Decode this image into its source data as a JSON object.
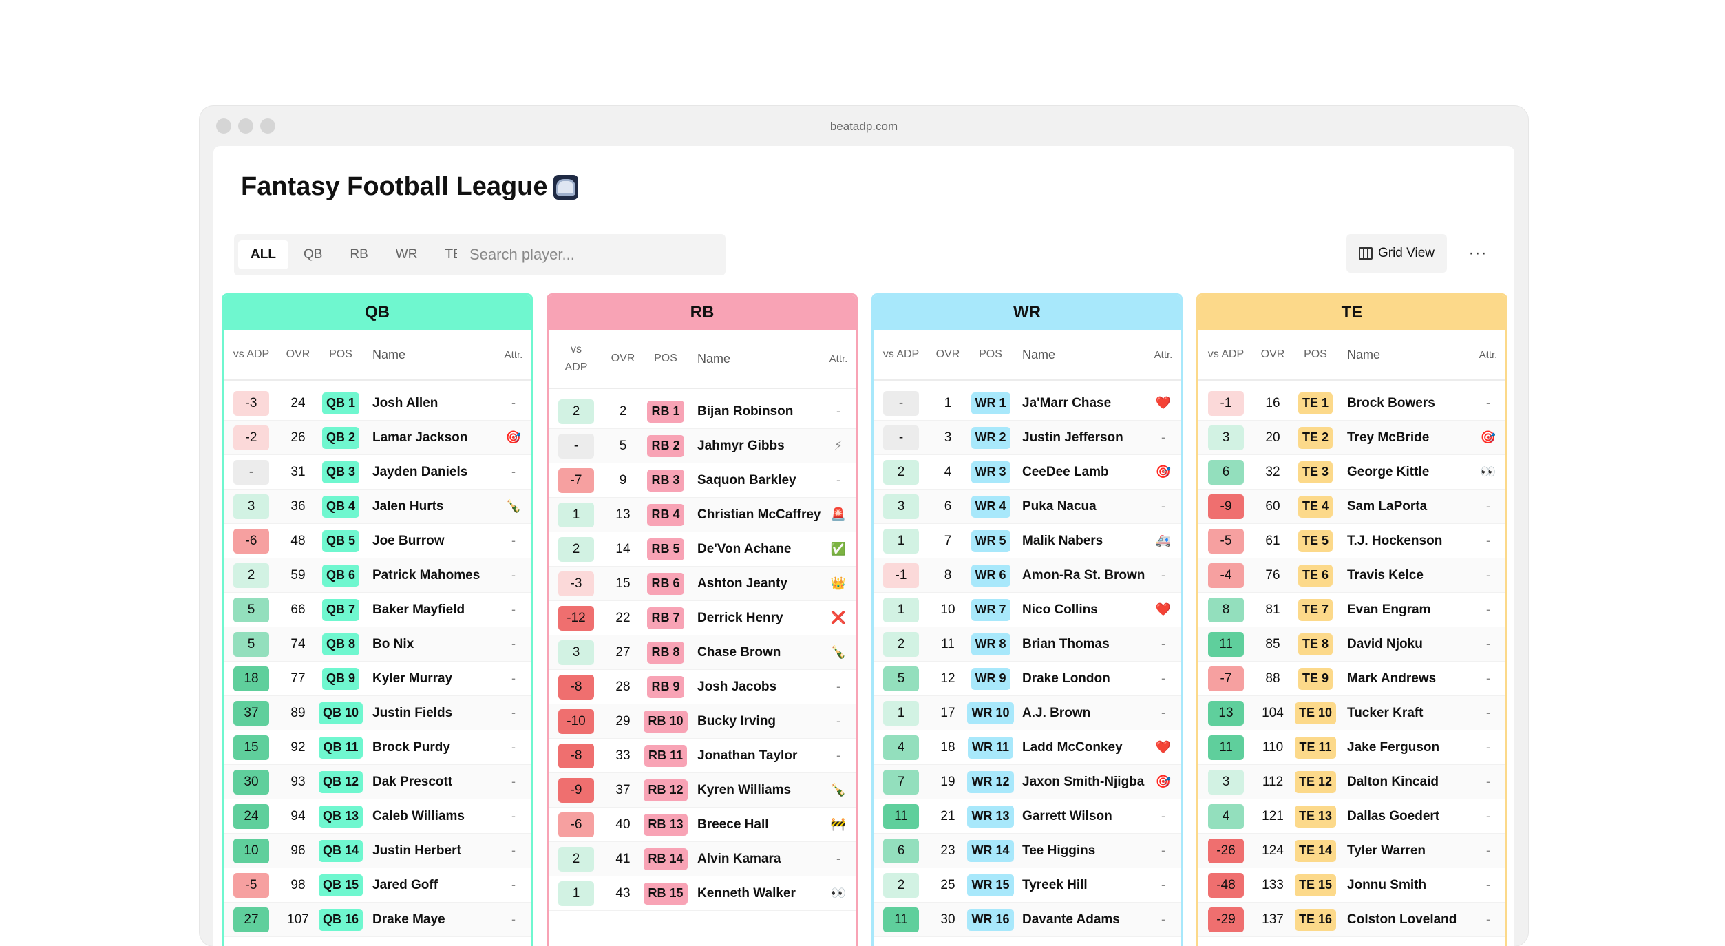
{
  "window": {
    "url": "beatadp.com"
  },
  "header": {
    "title": "Fantasy Football League",
    "icon": "football-helmet-icon"
  },
  "filters": [
    {
      "label": "ALL",
      "active": true
    },
    {
      "label": "QB",
      "active": false
    },
    {
      "label": "RB",
      "active": false
    },
    {
      "label": "WR",
      "active": false
    },
    {
      "label": "TE",
      "active": false
    }
  ],
  "search": {
    "placeholder": "Search player..."
  },
  "toolbar": {
    "view_label": "Grid View",
    "more_label": "···"
  },
  "columns_header": {
    "vs_adp": "vs ADP",
    "vs": "vs",
    "adp": "ADP",
    "ovr": "OVR",
    "pos": "POS",
    "name": "Name",
    "attr": "Attr."
  },
  "colors": {
    "qb": "#6ff7cf",
    "rb": "#f8a3b5",
    "wr": "#a8e8fb",
    "te": "#fcd98a",
    "pos_green_1": "#d2f2e3",
    "pos_green_2": "#93dfbd",
    "pos_green_3": "#5fcf9c",
    "neg_red_1": "#fbd9d9",
    "neg_red_2": "#f6a0a0",
    "neg_red_3": "#ef6f6f",
    "neutral": "#ececec"
  },
  "groups": [
    {
      "id": "qb",
      "title": "QB",
      "players": [
        {
          "adp": "-3",
          "ovr": "24",
          "pos": "QB 1",
          "name": "Josh Allen",
          "attr": "-"
        },
        {
          "adp": "-2",
          "ovr": "26",
          "pos": "QB 2",
          "name": "Lamar Jackson",
          "attr": "🎯"
        },
        {
          "adp": "-",
          "ovr": "31",
          "pos": "QB 3",
          "name": "Jayden Daniels",
          "attr": "-"
        },
        {
          "adp": "3",
          "ovr": "36",
          "pos": "QB 4",
          "name": "Jalen Hurts",
          "attr": "🍾"
        },
        {
          "adp": "-6",
          "ovr": "48",
          "pos": "QB 5",
          "name": "Joe Burrow",
          "attr": "-"
        },
        {
          "adp": "2",
          "ovr": "59",
          "pos": "QB 6",
          "name": "Patrick Mahomes",
          "attr": "-"
        },
        {
          "adp": "5",
          "ovr": "66",
          "pos": "QB 7",
          "name": "Baker Mayfield",
          "attr": "-"
        },
        {
          "adp": "5",
          "ovr": "74",
          "pos": "QB 8",
          "name": "Bo Nix",
          "attr": "-"
        },
        {
          "adp": "18",
          "ovr": "77",
          "pos": "QB 9",
          "name": "Kyler Murray",
          "attr": "-"
        },
        {
          "adp": "37",
          "ovr": "89",
          "pos": "QB 10",
          "name": "Justin Fields",
          "attr": "-"
        },
        {
          "adp": "15",
          "ovr": "92",
          "pos": "QB 11",
          "name": "Brock Purdy",
          "attr": "-"
        },
        {
          "adp": "30",
          "ovr": "93",
          "pos": "QB 12",
          "name": "Dak Prescott",
          "attr": "-"
        },
        {
          "adp": "24",
          "ovr": "94",
          "pos": "QB 13",
          "name": "Caleb Williams",
          "attr": "-"
        },
        {
          "adp": "10",
          "ovr": "96",
          "pos": "QB 14",
          "name": "Justin Herbert",
          "attr": "-"
        },
        {
          "adp": "-5",
          "ovr": "98",
          "pos": "QB 15",
          "name": "Jared Goff",
          "attr": "-"
        },
        {
          "adp": "27",
          "ovr": "107",
          "pos": "QB 16",
          "name": "Drake Maye",
          "attr": "-"
        }
      ]
    },
    {
      "id": "rb",
      "title": "RB",
      "players": [
        {
          "adp": "2",
          "ovr": "2",
          "pos": "RB 1",
          "name": "Bijan Robinson",
          "attr": "-"
        },
        {
          "adp": "-",
          "ovr": "5",
          "pos": "RB 2",
          "name": "Jahmyr Gibbs",
          "attr": "⚡"
        },
        {
          "adp": "-7",
          "ovr": "9",
          "pos": "RB 3",
          "name": "Saquon Barkley",
          "attr": "-"
        },
        {
          "adp": "1",
          "ovr": "13",
          "pos": "RB 4",
          "name": "Christian McCaffrey",
          "attr": "🚨"
        },
        {
          "adp": "2",
          "ovr": "14",
          "pos": "RB 5",
          "name": "De'Von Achane",
          "attr": "✅"
        },
        {
          "adp": "-3",
          "ovr": "15",
          "pos": "RB 6",
          "name": "Ashton Jeanty",
          "attr": "👑"
        },
        {
          "adp": "-12",
          "ovr": "22",
          "pos": "RB 7",
          "name": "Derrick Henry",
          "attr": "❌"
        },
        {
          "adp": "3",
          "ovr": "27",
          "pos": "RB 8",
          "name": "Chase Brown",
          "attr": "🍾"
        },
        {
          "adp": "-8",
          "ovr": "28",
          "pos": "RB 9",
          "name": "Josh Jacobs",
          "attr": "-"
        },
        {
          "adp": "-10",
          "ovr": "29",
          "pos": "RB 10",
          "name": "Bucky Irving",
          "attr": "-"
        },
        {
          "adp": "-8",
          "ovr": "33",
          "pos": "RB 11",
          "name": "Jonathan Taylor",
          "attr": "-"
        },
        {
          "adp": "-9",
          "ovr": "37",
          "pos": "RB 12",
          "name": "Kyren Williams",
          "attr": "🍾"
        },
        {
          "adp": "-6",
          "ovr": "40",
          "pos": "RB 13",
          "name": "Breece Hall",
          "attr": "🚧"
        },
        {
          "adp": "2",
          "ovr": "41",
          "pos": "RB 14",
          "name": "Alvin Kamara",
          "attr": "-"
        },
        {
          "adp": "1",
          "ovr": "43",
          "pos": "RB 15",
          "name": "Kenneth Walker",
          "attr": "👀"
        }
      ]
    },
    {
      "id": "wr",
      "title": "WR",
      "players": [
        {
          "adp": "-",
          "ovr": "1",
          "pos": "WR 1",
          "name": "Ja'Marr Chase",
          "attr": "❤️"
        },
        {
          "adp": "-",
          "ovr": "3",
          "pos": "WR 2",
          "name": "Justin Jefferson",
          "attr": "-"
        },
        {
          "adp": "2",
          "ovr": "4",
          "pos": "WR 3",
          "name": "CeeDee Lamb",
          "attr": "🎯"
        },
        {
          "adp": "3",
          "ovr": "6",
          "pos": "WR 4",
          "name": "Puka Nacua",
          "attr": "-"
        },
        {
          "adp": "1",
          "ovr": "7",
          "pos": "WR 5",
          "name": "Malik Nabers",
          "attr": "🚑"
        },
        {
          "adp": "-1",
          "ovr": "8",
          "pos": "WR 6",
          "name": "Amon-Ra St. Brown",
          "attr": "-"
        },
        {
          "adp": "1",
          "ovr": "10",
          "pos": "WR 7",
          "name": "Nico Collins",
          "attr": "❤️"
        },
        {
          "adp": "2",
          "ovr": "11",
          "pos": "WR 8",
          "name": "Brian Thomas",
          "attr": "-"
        },
        {
          "adp": "5",
          "ovr": "12",
          "pos": "WR 9",
          "name": "Drake London",
          "attr": "-"
        },
        {
          "adp": "1",
          "ovr": "17",
          "pos": "WR 10",
          "name": "A.J. Brown",
          "attr": "-"
        },
        {
          "adp": "4",
          "ovr": "18",
          "pos": "WR 11",
          "name": "Ladd McConkey",
          "attr": "❤️"
        },
        {
          "adp": "7",
          "ovr": "19",
          "pos": "WR 12",
          "name": "Jaxon Smith-Njigba",
          "attr": "🎯"
        },
        {
          "adp": "11",
          "ovr": "21",
          "pos": "WR 13",
          "name": "Garrett Wilson",
          "attr": "-"
        },
        {
          "adp": "6",
          "ovr": "23",
          "pos": "WR 14",
          "name": "Tee Higgins",
          "attr": "-"
        },
        {
          "adp": "2",
          "ovr": "25",
          "pos": "WR 15",
          "name": "Tyreek Hill",
          "attr": "-"
        },
        {
          "adp": "11",
          "ovr": "30",
          "pos": "WR 16",
          "name": "Davante Adams",
          "attr": "-"
        }
      ]
    },
    {
      "id": "te",
      "title": "TE",
      "players": [
        {
          "adp": "-1",
          "ovr": "16",
          "pos": "TE 1",
          "name": "Brock Bowers",
          "attr": "-"
        },
        {
          "adp": "3",
          "ovr": "20",
          "pos": "TE 2",
          "name": "Trey McBride",
          "attr": "🎯"
        },
        {
          "adp": "6",
          "ovr": "32",
          "pos": "TE 3",
          "name": "George Kittle",
          "attr": "👀"
        },
        {
          "adp": "-9",
          "ovr": "60",
          "pos": "TE 4",
          "name": "Sam LaPorta",
          "attr": "-"
        },
        {
          "adp": "-5",
          "ovr": "61",
          "pos": "TE 5",
          "name": "T.J. Hockenson",
          "attr": "-"
        },
        {
          "adp": "-4",
          "ovr": "76",
          "pos": "TE 6",
          "name": "Travis Kelce",
          "attr": "-"
        },
        {
          "adp": "8",
          "ovr": "81",
          "pos": "TE 7",
          "name": "Evan Engram",
          "attr": "-"
        },
        {
          "adp": "11",
          "ovr": "85",
          "pos": "TE 8",
          "name": "David Njoku",
          "attr": "-"
        },
        {
          "adp": "-7",
          "ovr": "88",
          "pos": "TE 9",
          "name": "Mark Andrews",
          "attr": "-"
        },
        {
          "adp": "13",
          "ovr": "104",
          "pos": "TE 10",
          "name": "Tucker Kraft",
          "attr": "-"
        },
        {
          "adp": "11",
          "ovr": "110",
          "pos": "TE 11",
          "name": "Jake Ferguson",
          "attr": "-"
        },
        {
          "adp": "3",
          "ovr": "112",
          "pos": "TE 12",
          "name": "Dalton Kincaid",
          "attr": "-"
        },
        {
          "adp": "4",
          "ovr": "121",
          "pos": "TE 13",
          "name": "Dallas Goedert",
          "attr": "-"
        },
        {
          "adp": "-26",
          "ovr": "124",
          "pos": "TE 14",
          "name": "Tyler Warren",
          "attr": "-"
        },
        {
          "adp": "-48",
          "ovr": "133",
          "pos": "TE 15",
          "name": "Jonnu Smith",
          "attr": "-"
        },
        {
          "adp": "-29",
          "ovr": "137",
          "pos": "TE 16",
          "name": "Colston Loveland",
          "attr": "-"
        }
      ]
    }
  ]
}
